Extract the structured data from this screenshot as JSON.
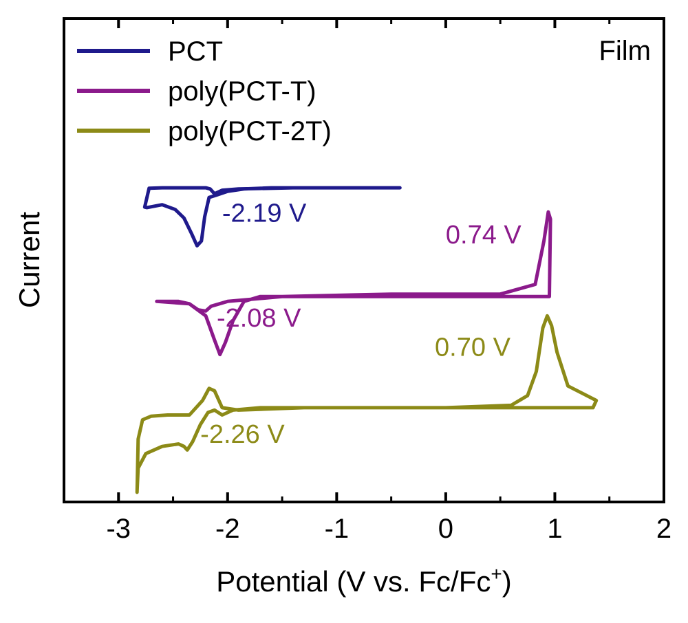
{
  "chart_data": {
    "type": "line",
    "title": "",
    "xlabel": "Potential (V vs. Fc/Fc",
    "xlabel_sup": "+",
    "xlabel_end": ")",
    "ylabel": "Current",
    "xlim": [
      -3.5,
      2
    ],
    "xticks": [
      -3,
      -2,
      -1,
      0,
      1,
      2
    ],
    "xtick_labels": [
      "-3",
      "-2",
      "-1",
      "0",
      "1",
      "2"
    ],
    "y_ticks_shown": false,
    "grid": false,
    "legend_position": "top-left",
    "corner_label": "Film",
    "note": "Cyclic voltammograms; y-values in arbitrary current units (vertically offset traces).",
    "series": [
      {
        "name": "PCT",
        "color": "#1f1a8c",
        "offset": 0,
        "x": [
          -0.42,
          -1.4,
          -1.9,
          -2.05,
          -2.12,
          -2.16,
          -2.2,
          -2.6,
          -2.72,
          -2.76,
          -2.74,
          -2.6,
          -2.48,
          -2.4,
          -2.33,
          -2.28,
          -2.24,
          -2.21,
          -2.17,
          -2.1,
          -2.0,
          -1.85,
          -1.6,
          -1.0,
          -0.42
        ],
        "y": [
          0.0,
          0.0,
          -0.05,
          -0.1,
          -0.25,
          -0.05,
          0.0,
          0.0,
          -0.02,
          -0.8,
          -0.82,
          -0.7,
          -0.9,
          -1.25,
          -1.9,
          -2.4,
          -2.2,
          -1.2,
          -0.4,
          -0.3,
          -0.15,
          -0.05,
          0.0,
          0.0,
          0.0
        ]
      },
      {
        "name": "poly(PCT-T)",
        "color": "#8b1a8b",
        "offset": -4.5,
        "x": [
          -2.65,
          -2.5,
          -2.35,
          -2.2,
          -2.12,
          -2.07,
          -2.02,
          -1.95,
          -1.85,
          -1.7,
          -1.0,
          0.0,
          0.7,
          0.85,
          0.91,
          0.93,
          0.95,
          0.96,
          0.94,
          0.9,
          0.82,
          0.5,
          -0.5,
          -1.5,
          -2.0,
          -2.15,
          -2.2,
          -2.27,
          -2.35,
          -2.45,
          -2.55,
          -2.65
        ],
        "y": [
          -0.2,
          -0.25,
          -0.3,
          -0.8,
          -1.8,
          -2.4,
          -1.9,
          -1.0,
          -0.2,
          0.0,
          0.0,
          0.0,
          0.0,
          0.0,
          0.0,
          0.0,
          0.0,
          3.2,
          3.5,
          2.3,
          0.5,
          0.1,
          0.1,
          0.0,
          -0.2,
          -0.4,
          -0.6,
          -0.55,
          -0.3,
          -0.2,
          -0.2,
          -0.2
        ]
      },
      {
        "name": "poly(PCT-2T)",
        "color": "#8c8a17",
        "offset": -9.1,
        "x": [
          -2.83,
          -2.82,
          -2.75,
          -2.6,
          -2.45,
          -2.4,
          -2.37,
          -2.32,
          -2.25,
          -2.18,
          -2.12,
          -2.05,
          -1.95,
          -1.7,
          -1.0,
          0.0,
          0.6,
          0.75,
          0.83,
          0.89,
          0.93,
          0.97,
          1.02,
          1.12,
          1.25,
          1.38,
          1.35,
          1.0,
          0.5,
          -0.5,
          -1.3,
          -1.9,
          -2.05,
          -2.12,
          -2.17,
          -2.23,
          -2.35,
          -2.55,
          -2.7,
          -2.78,
          -2.82,
          -2.83
        ],
        "y": [
          -3.5,
          -2.5,
          -1.9,
          -1.6,
          -1.5,
          -1.6,
          -1.75,
          -1.4,
          -0.7,
          -0.2,
          -0.1,
          -0.3,
          -0.1,
          0.0,
          0.0,
          0.0,
          0.1,
          0.5,
          1.5,
          3.3,
          3.8,
          3.4,
          2.3,
          0.9,
          0.6,
          0.3,
          0.0,
          0.0,
          0.0,
          0.0,
          0.0,
          -0.1,
          0.0,
          0.7,
          0.8,
          0.3,
          -0.3,
          -0.3,
          -0.35,
          -0.5,
          -1.3,
          -3.5
        ]
      }
    ],
    "annotations": [
      {
        "text": "-2.19 V",
        "color": "#1f1a8c",
        "x": -2.05,
        "y": -1.4
      },
      {
        "text": "0.74 V",
        "color": "#8b1a8b",
        "x": 0.0,
        "y": -2.3
      },
      {
        "text": "-2.08 V",
        "color": "#8b1a8b",
        "x": -2.1,
        "y": -5.75
      },
      {
        "text": "0.70 V",
        "color": "#8c8a17",
        "x": -0.1,
        "y": -6.95
      },
      {
        "text": "-2.26 V",
        "color": "#8c8a17",
        "x": -2.25,
        "y": -10.55
      }
    ],
    "ylim": [
      -13.0,
      7.0
    ]
  }
}
